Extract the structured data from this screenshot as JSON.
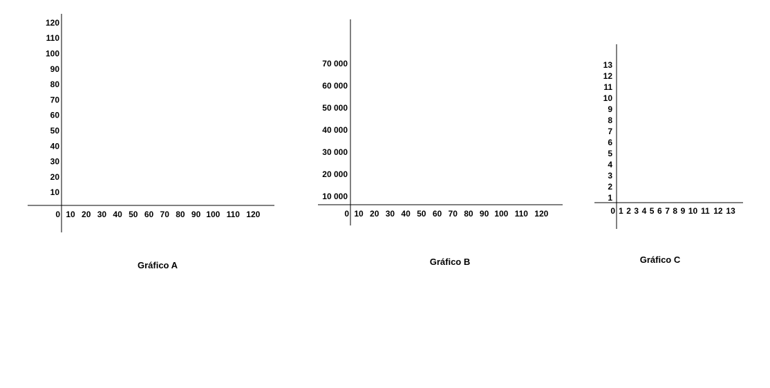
{
  "chart_data": [
    {
      "type": "scatter",
      "title": "Gráfico A",
      "xlabel": "",
      "ylabel": "",
      "origin_label": "0",
      "x_ticks": [
        10,
        20,
        30,
        40,
        50,
        60,
        70,
        80,
        90,
        100,
        110,
        120
      ],
      "x_tick_labels": [
        "10",
        "20",
        "30",
        "40",
        "50",
        "60",
        "70",
        "80",
        "90",
        "100",
        "110",
        "120"
      ],
      "y_ticks": [
        10,
        20,
        30,
        40,
        50,
        60,
        70,
        80,
        90,
        100,
        110,
        120
      ],
      "y_tick_labels": [
        "10",
        "20",
        "30",
        "40",
        "50",
        "60",
        "70",
        "80",
        "90",
        "100",
        "110",
        "120"
      ],
      "series": [],
      "grid": false
    },
    {
      "type": "scatter",
      "title": "Gráfico B",
      "xlabel": "",
      "ylabel": "",
      "origin_label": "0",
      "x_ticks": [
        10,
        20,
        30,
        40,
        50,
        60,
        70,
        80,
        90,
        100,
        110,
        120
      ],
      "x_tick_labels": [
        "10",
        "20",
        "30",
        "40",
        "50",
        "60",
        "70",
        "80",
        "90",
        "100",
        "110",
        "120"
      ],
      "y_ticks": [
        10000,
        20000,
        30000,
        40000,
        50000,
        60000,
        70000
      ],
      "y_tick_labels": [
        "10 000",
        "20 000",
        "30 000",
        "40 000",
        "50 000",
        "60 000",
        "70 000"
      ],
      "series": [],
      "grid": false
    },
    {
      "type": "scatter",
      "title": "Gráfico C",
      "xlabel": "",
      "ylabel": "",
      "origin_label": "0",
      "x_ticks": [
        1,
        2,
        3,
        4,
        5,
        6,
        7,
        8,
        9,
        10,
        11,
        12,
        13
      ],
      "x_tick_labels": [
        "1",
        "2",
        "3",
        "4",
        "5",
        "6",
        "7",
        "8",
        "9",
        "10",
        "11",
        "12",
        "13"
      ],
      "y_ticks": [
        1,
        2,
        3,
        4,
        5,
        6,
        7,
        8,
        9,
        10,
        11,
        12,
        13
      ],
      "y_tick_labels": [
        "1",
        "2",
        "3",
        "4",
        "5",
        "6",
        "7",
        "8",
        "9",
        "10",
        "11",
        "12",
        "13"
      ],
      "series": [],
      "grid": false
    }
  ]
}
